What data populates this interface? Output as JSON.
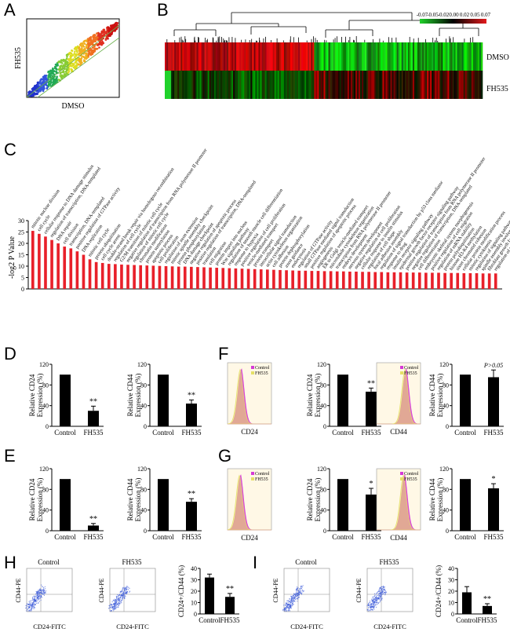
{
  "panel_labels": {
    "a": "A",
    "b": "B",
    "c": "C",
    "d": "D",
    "e": "E",
    "f": "F",
    "g": "G",
    "h": "H",
    "i": "I"
  },
  "panel_a": {
    "xlabel": "DMSO",
    "ylabel": "FH535"
  },
  "panel_b": {
    "row_labels": [
      "DMSO",
      "FH535"
    ],
    "colorbar_ticks": [
      "-0.07",
      "-0.05",
      "-0.02",
      "0.00",
      "0.02",
      "0.05",
      "0.07"
    ]
  },
  "chart_data": [
    {
      "panel": "C",
      "type": "bar",
      "ylabel": "-log2 P Value",
      "ylim": [
        0,
        30
      ],
      "yticks": [
        "0",
        "5",
        "10",
        "15",
        "20",
        "25",
        "30"
      ],
      "categories": [
        "mitotic nuclear division",
        "cell cycle",
        "cellular response to DNA damage stimulus",
        "regulation of transcription, DNA-templated",
        "DNA repair",
        "cell division",
        "transcription, DNA-templated",
        "positive regulation of GTPase activity",
        "DNA replication",
        "mitotic cell cycle",
        "protein ubiquitination",
        "cell cycle arrest",
        "double-strand break repair via homologous recombination",
        "regulation of cell cycle",
        "G2/M transition of mitotic cell cycle",
        "negative regulation of transcription from RNA polymerase II promoter",
        "regulation of mitotic cell cycle",
        "chromatin modification",
        "protein sumoylation",
        "apoptotic process",
        "cell proliferation",
        "regulation of axon extension",
        "mitotic spindle assembly checkpoint",
        "protein phosphorylation",
        "DNA damage checkpoint",
        "negative regulation of apoptotic process",
        "positive regulation of transcription, DNA-templated",
        "translation",
        "cell migration",
        "protein import into nucleus",
        "Wnt signaling pathway",
        "regulation of smooth muscle cell differentiation",
        "response to hypoxia",
        "positive regulation of cell proliferation",
        "vesicle-mediated transport",
        "protein transport",
        "intracellular signal transduction",
        "actin cytoskeleton organization",
        "cell adhesion",
        "protein dephosphorylation",
        "axon guidance",
        "endocytosis",
        "regulation of GTPase activity",
        "small GTPase mediated signal transduction",
        "positive regulation of apoptotic process",
        "angiogenesis",
        "ER to Golgi vesicle-mediated transport",
        "microtubule cytoskeleton organization",
        "transcription from RNA polymerase II promoter",
        "embryo development",
        "nervous system development",
        "negative regulation of cell proliferation",
        "cellular response to insulin stimulus",
        "regulation of cell shape",
        "focal adhesion assembly",
        "regulation of signal transduction by p53 class mediator",
        "response to drug",
        "insulin receptor signaling pathway",
        "epidermal growth factor receptor signaling pathway",
        "positive regulation of transcription from RNA polymerase II promoter",
        "negative regulation of transcription, DNA-templated",
        "cell differentiation",
        "embryonic skeletal system morphogenesis",
        "positive regulation of cell migration",
        "regulation of mRNA stability",
        "protein polyubiquitination",
        "histone H3-K4 methylation",
        "sister chromatid cohesion",
        "cellular protein modification process",
        "mitotic cytokinesis",
        "regulation of signaling pathway",
        "spindle assembly involved in mitosis",
        "fibroblast growth factor receptor signaling pathway",
        "regulation of translation"
      ],
      "values": [
        25.5,
        24.2,
        23.0,
        21.5,
        20.0,
        18.6,
        17.8,
        16.5,
        15.0,
        13.0,
        11.8,
        11.4,
        11.0,
        10.9,
        10.7,
        10.6,
        10.5,
        10.4,
        10.3,
        10.2,
        10.1,
        10.0,
        9.9,
        9.8,
        9.8,
        9.7,
        9.6,
        9.5,
        9.4,
        9.3,
        9.2,
        9.1,
        9.0,
        8.9,
        8.8,
        8.7,
        8.6,
        8.5,
        8.4,
        8.3,
        8.2,
        8.1,
        8.0,
        8.0,
        7.9,
        7.9,
        7.8,
        7.8,
        7.7,
        7.7,
        7.6,
        7.6,
        7.5,
        7.5,
        7.4,
        7.4,
        7.3,
        7.3,
        7.3,
        7.2,
        7.2,
        7.2,
        7.1,
        7.1,
        7.1,
        7.0,
        7.0,
        7.0,
        6.9,
        6.9,
        6.9,
        6.8,
        6.8,
        6.8
      ]
    },
    {
      "panel": "D-left",
      "type": "bar",
      "categories": [
        "Control",
        "FH535"
      ],
      "values": [
        100,
        30
      ],
      "errors": [
        0,
        9
      ],
      "sig": [
        "",
        "**"
      ],
      "ylabel": "Relative CD24 Expression (%)",
      "ylim": [
        0,
        120
      ],
      "yticks": [
        "0",
        "40",
        "80",
        "120"
      ]
    },
    {
      "panel": "D-right",
      "type": "bar",
      "categories": [
        "Control",
        "FH535"
      ],
      "values": [
        100,
        44
      ],
      "errors": [
        0,
        7
      ],
      "sig": [
        "",
        "**"
      ],
      "ylabel": "Relative CD44 Expression (%)",
      "ylim": [
        0,
        120
      ],
      "yticks": [
        "0",
        "40",
        "80",
        "120"
      ]
    },
    {
      "panel": "E-left",
      "type": "bar",
      "categories": [
        "Control",
        "FH535"
      ],
      "values": [
        100,
        10
      ],
      "errors": [
        0,
        4
      ],
      "sig": [
        "",
        "**"
      ],
      "ylabel": "Relative CD24 Expression (%)",
      "ylim": [
        0,
        120
      ],
      "yticks": [
        "0",
        "40",
        "80",
        "120"
      ]
    },
    {
      "panel": "E-right",
      "type": "bar",
      "categories": [
        "Control",
        "FH535"
      ],
      "values": [
        100,
        56
      ],
      "errors": [
        0,
        6
      ],
      "sig": [
        "",
        "**"
      ],
      "ylabel": "Relative CD44 Expression (%)",
      "ylim": [
        0,
        120
      ],
      "yticks": [
        "0",
        "40",
        "80",
        "120"
      ]
    },
    {
      "panel": "F-left",
      "type": "bar",
      "categories": [
        "Control",
        "FH535"
      ],
      "values": [
        100,
        67
      ],
      "errors": [
        0,
        7
      ],
      "sig": [
        "",
        "**"
      ],
      "ylabel": "Relative CD24 Expression (%)",
      "ylim": [
        0,
        120
      ],
      "yticks": [
        "0",
        "40",
        "80",
        "120"
      ]
    },
    {
      "panel": "F-right",
      "type": "bar",
      "categories": [
        "Control",
        "FH535"
      ],
      "values": [
        100,
        95
      ],
      "errors": [
        0,
        14
      ],
      "sig": [
        "",
        "P>0.05"
      ],
      "ylabel": "Relative CD44 Expression (%)",
      "ylim": [
        0,
        120
      ],
      "yticks": [
        "0",
        "40",
        "80",
        "120"
      ]
    },
    {
      "panel": "G-left",
      "type": "bar",
      "categories": [
        "Control",
        "FH535"
      ],
      "values": [
        100,
        70
      ],
      "errors": [
        0,
        12
      ],
      "sig": [
        "",
        "*"
      ],
      "ylabel": "Relative CD24 Expression (%)",
      "ylim": [
        0,
        120
      ],
      "yticks": [
        "0",
        "40",
        "80",
        "120"
      ]
    },
    {
      "panel": "G-right",
      "type": "bar",
      "categories": [
        "Control",
        "FH535"
      ],
      "values": [
        100,
        82
      ],
      "errors": [
        0,
        9
      ],
      "sig": [
        "",
        "*"
      ],
      "ylabel": "Relative CD44 Expression (%)",
      "ylim": [
        0,
        120
      ],
      "yticks": [
        "0",
        "40",
        "80",
        "120"
      ]
    },
    {
      "panel": "H-bar",
      "type": "bar",
      "categories": [
        "Control",
        "FH535"
      ],
      "values": [
        32,
        15
      ],
      "errors": [
        3,
        3
      ],
      "sig": [
        "",
        "**"
      ],
      "ylabel": "CD24+/CD44 (%)",
      "ylim": [
        0,
        40
      ],
      "yticks": [
        "0",
        "10",
        "20",
        "30",
        "40"
      ]
    },
    {
      "panel": "I-bar",
      "type": "bar",
      "categories": [
        "Control",
        "FH535"
      ],
      "values": [
        19,
        7
      ],
      "errors": [
        5,
        2
      ],
      "sig": [
        "",
        "**"
      ],
      "ylabel": "CD24+/CD44 (%)",
      "ylim": [
        0,
        40
      ],
      "yticks": [
        "0",
        "10",
        "20",
        "30",
        "40"
      ]
    }
  ],
  "histograms": {
    "legend": [
      "Control",
      "FH535"
    ],
    "f_left_xlabel": "CD24",
    "f_right_xlabel": "CD44",
    "g_left_xlabel": "CD24",
    "g_right_xlabel": "CD44"
  },
  "flow": {
    "h_left_title": "Control",
    "h_right_title": "FH535",
    "i_left_title": "Control",
    "i_right_title": "FH535",
    "xlabel": "CD24-FITC",
    "ylabel": "CD44-PE"
  },
  "colors": {
    "bar_red": "#e8202a",
    "bar_black": "#000000",
    "heat_red": "#e31a1c",
    "heat_green": "#1fd12a",
    "control_magenta": "#d63ad6",
    "fh535_yellow": "#e5e067",
    "hist_bg": "#fff8e6",
    "dot_blue": "#3a5ad8"
  }
}
